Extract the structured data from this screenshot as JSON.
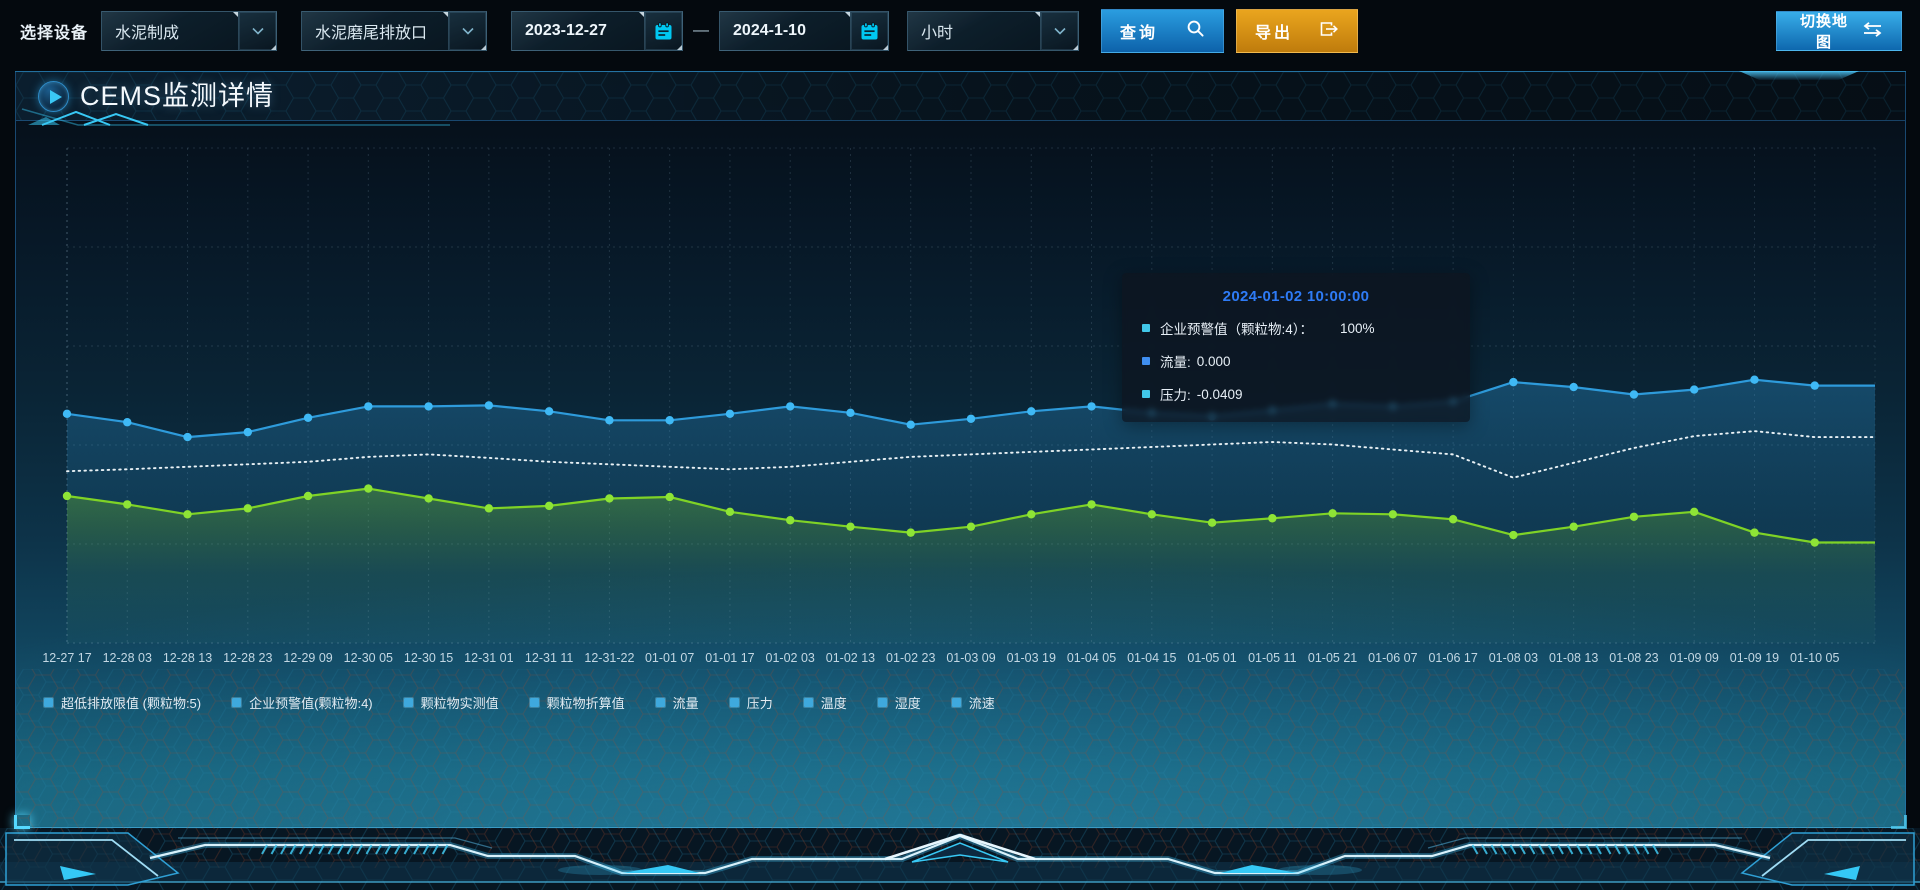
{
  "toolbar": {
    "device_label": "选择设备",
    "device_select": {
      "value": "水泥制成"
    },
    "outlet_select": {
      "value": "水泥磨尾排放口"
    },
    "date_start": {
      "value": "2023-12-27"
    },
    "date_separator": "—",
    "date_end": {
      "value": "2024-1-10"
    },
    "interval_select": {
      "value": "小时"
    },
    "query_button": "查询",
    "export_button": "导出",
    "switch_map_button": "切换地图"
  },
  "panel": {
    "title": "CEMS监测详情"
  },
  "tooltip": {
    "title": "2024-01-02 10:00:00",
    "rows": [
      {
        "label": "企业预警值（颗粒物:4）：",
        "value": "100%",
        "marker_color": "#41c7e8"
      },
      {
        "label": "流量:",
        "value": "0.000",
        "marker_color": "#3f8ef0"
      },
      {
        "label": "压力:",
        "value": "-0.0409",
        "marker_color": "#41c7e8"
      }
    ]
  },
  "legend": {
    "marker_color": "#3fa9dd",
    "items": [
      "超低排放限值 (颗粒物:5)",
      "企业预警值(颗粒物:4)",
      "颗粒物实测值",
      "颗粒物折算值",
      "流量",
      "压力",
      "温度",
      "湿度",
      "流速"
    ]
  },
  "chart_data": {
    "type": "line",
    "x_labels": [
      "12-27 17",
      "12-28 03",
      "12-28 13",
      "12-28 23",
      "12-29 09",
      "12-30 05",
      "12-30 15",
      "12-31 01",
      "12-31 11",
      "12-31-22",
      "01-01 07",
      "01-01 17",
      "01-02 03",
      "01-02 13",
      "01-02 23",
      "01-03 09",
      "01-03 19",
      "01-04 05",
      "01-04 15",
      "01-05 01",
      "01-05 11",
      "01-05 21",
      "01-06 07",
      "01-06 17",
      "01-08 03",
      "01-08 13",
      "01-08 23",
      "01-09 09",
      "01-09 19",
      "01-10 05"
    ],
    "y_axis_labels_visible": false,
    "grid": true,
    "legend_position": "bottom",
    "series": [
      {
        "name": "blue-line",
        "color": "#2E9BDB",
        "dot_color": "#3FB9F5",
        "style": "solid",
        "markers": true,
        "area": true,
        "values_pct": [
          46.3,
          44.6,
          41.6,
          42.6,
          45.5,
          47.8,
          47.8,
          48.0,
          46.8,
          45.0,
          45.0,
          46.3,
          47.8,
          46.5,
          44.1,
          45.3,
          46.8,
          47.8,
          46.5,
          45.8,
          47.0,
          48.3,
          47.8,
          48.8,
          52.7,
          51.7,
          50.2,
          51.2,
          53.2,
          52.0
        ]
      },
      {
        "name": "white-dotted-line",
        "color": "#E9F1F5",
        "style": "dotted",
        "markers": false,
        "area": false,
        "values_pct": [
          34.7,
          35.1,
          35.6,
          36.1,
          36.6,
          37.6,
          38.1,
          37.4,
          36.6,
          36.1,
          35.6,
          35.1,
          35.6,
          36.6,
          37.6,
          38.1,
          38.6,
          39.1,
          39.6,
          40.1,
          40.6,
          40.1,
          39.1,
          38.1,
          33.4,
          36.4,
          39.4,
          41.8,
          42.8,
          41.6
        ]
      },
      {
        "name": "green-line",
        "color": "#7FD326",
        "dot_color": "#8EE436",
        "style": "solid",
        "markers": true,
        "area": true,
        "values_pct": [
          29.7,
          28.0,
          26.0,
          27.2,
          29.7,
          31.2,
          29.2,
          27.2,
          27.7,
          29.2,
          29.5,
          26.5,
          24.8,
          23.5,
          22.3,
          23.5,
          26.0,
          28.0,
          26.0,
          24.3,
          25.2,
          26.2,
          26.0,
          25.0,
          21.8,
          23.5,
          25.5,
          26.5,
          22.3,
          20.3
        ]
      }
    ]
  },
  "colors": {
    "accent_cyan": "#35c8f5",
    "panel_border": "#2a76b6",
    "query_button": "#1581c5",
    "export_button": "#d4920f",
    "tooltip_title": "#2e7bf6",
    "calendar_icon": "#00c8f2"
  }
}
